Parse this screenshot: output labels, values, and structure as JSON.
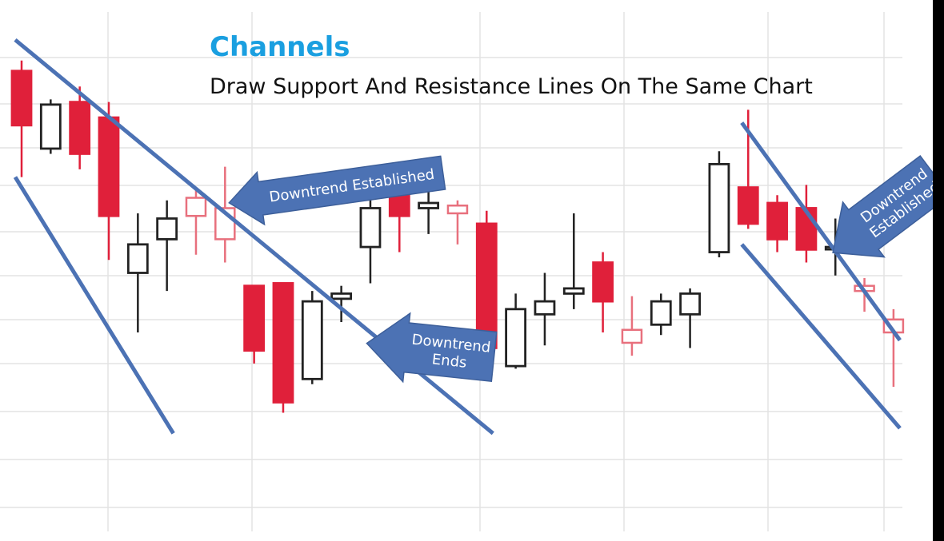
{
  "colors": {
    "bear": "#e0203a",
    "bear_light": "#e8707d",
    "bull": "#222222",
    "bull_light": "#6b6b6b",
    "line": "#4c72b4",
    "title": "#1a9fe0",
    "grid": "#e3e3e3",
    "callout_fill": "#4c72b4"
  },
  "chart_data": {
    "type": "candlestick",
    "title": "Channels",
    "subtitle": "Draw Support And Resistance Lines On The Same Chart",
    "candles": [
      {
        "open": 88.0,
        "high": 90.0,
        "low": 67.5,
        "close": 77.5
      },
      {
        "open": 73.0,
        "high": 82.5,
        "low": 72.0,
        "close": 81.5
      },
      {
        "open": 82.0,
        "high": 85.0,
        "low": 69.0,
        "close": 72.0
      },
      {
        "open": 79.0,
        "high": 82.0,
        "low": 51.5,
        "close": 60.0
      },
      {
        "open": 49.0,
        "high": 60.5,
        "low": 37.5,
        "close": 54.5
      },
      {
        "open": 55.5,
        "high": 63.0,
        "low": 45.5,
        "close": 59.5
      },
      {
        "open": 63.5,
        "high": 65.0,
        "low": 52.5,
        "close": 60.0
      },
      {
        "open": 61.5,
        "high": 69.5,
        "low": 51.0,
        "close": 55.5
      },
      {
        "open": 46.5,
        "high": 46.5,
        "low": 31.5,
        "close": 34.0
      },
      {
        "open": 47.0,
        "high": 47.0,
        "low": 22.0,
        "close": 24.0
      },
      {
        "open": 28.5,
        "high": 45.5,
        "low": 27.5,
        "close": 43.5
      },
      {
        "open": 44.0,
        "high": 46.5,
        "low": 39.5,
        "close": 45.0
      },
      {
        "open": 54.0,
        "high": 66.0,
        "low": 47.0,
        "close": 61.5
      },
      {
        "open": 67.5,
        "high": 69.5,
        "low": 53.0,
        "close": 60.0
      },
      {
        "open": 61.5,
        "high": 69.0,
        "low": 56.5,
        "close": 62.5
      },
      {
        "open": 62.0,
        "high": 63.0,
        "low": 54.5,
        "close": 60.5
      },
      {
        "open": 58.5,
        "high": 61.0,
        "low": 30.0,
        "close": 34.5
      },
      {
        "open": 31.0,
        "high": 45.0,
        "low": 30.5,
        "close": 42.0
      },
      {
        "open": 41.0,
        "high": 49.0,
        "low": 35.0,
        "close": 43.5
      },
      {
        "open": 45.0,
        "high": 60.5,
        "low": 42.0,
        "close": 46.0
      },
      {
        "open": 51.0,
        "high": 53.0,
        "low": 37.5,
        "close": 43.5
      },
      {
        "open": 38.0,
        "high": 44.5,
        "low": 33.0,
        "close": 35.5
      },
      {
        "open": 39.0,
        "high": 45.0,
        "low": 37.0,
        "close": 43.5
      },
      {
        "open": 41.0,
        "high": 46.0,
        "low": 34.5,
        "close": 45.0
      },
      {
        "open": 53.0,
        "high": 72.5,
        "low": 52.0,
        "close": 70.0
      },
      {
        "open": 65.5,
        "high": 80.5,
        "low": 57.5,
        "close": 58.5
      },
      {
        "open": 62.5,
        "high": 64.0,
        "low": 53.0,
        "close": 55.5
      },
      {
        "open": 61.5,
        "high": 66.0,
        "low": 51.0,
        "close": 53.5
      },
      {
        "open": 54.0,
        "high": 59.5,
        "low": 48.5,
        "close": 54.0
      },
      {
        "open": 46.5,
        "high": 48.0,
        "low": 41.5,
        "close": 45.5
      },
      {
        "open": 40.0,
        "high": 42.0,
        "low": 27.0,
        "close": 37.5
      }
    ],
    "trendlines": [
      {
        "from": {
          "candle": 0,
          "value": 94.0
        },
        "to": {
          "candle": 16,
          "value": 18.0
        }
      },
      {
        "from": {
          "candle": 0,
          "value": 67.5
        },
        "to": {
          "candle": 5,
          "value": 18.0
        }
      },
      {
        "from": {
          "candle": 25,
          "value": 78.0
        },
        "to": {
          "candle": 30,
          "value": 36.0
        }
      },
      {
        "from": {
          "candle": 25,
          "value": 54.5
        },
        "to": {
          "candle": 30,
          "value": 19.0
        }
      }
    ],
    "annotations": [
      {
        "lines": [
          "Downtrend Established"
        ],
        "points_to_candle": 7
      },
      {
        "lines": [
          "Downtrend",
          "Ends"
        ],
        "points_to_candle": 12
      },
      {
        "lines": [
          "Downtrend",
          "Established"
        ],
        "points_to_candle": 27
      }
    ],
    "grid": true,
    "legend": "none"
  }
}
